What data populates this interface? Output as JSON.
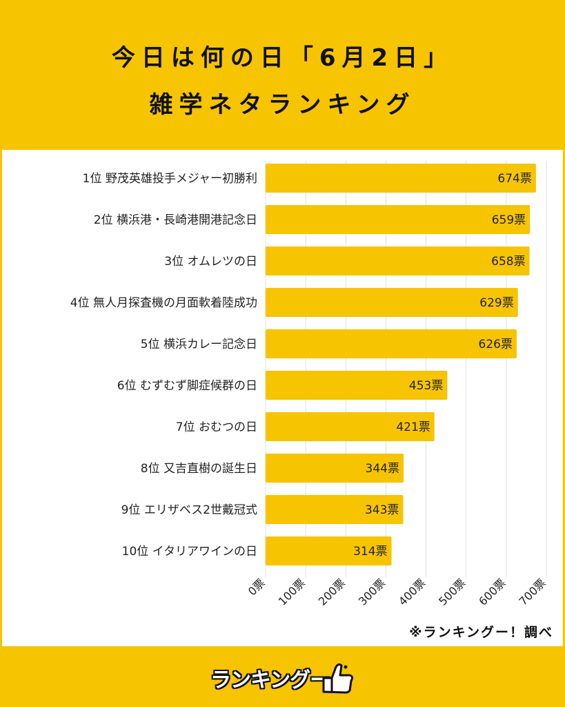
{
  "title_line1": "今日は何の日「6月2日」",
  "title_line2": "雑学ネタランキング",
  "credit": "※ランキングー！調べ",
  "logo_text": "ランキングー",
  "chart_data": {
    "type": "bar",
    "orientation": "horizontal",
    "categories": [
      "1位 野茂英雄投手メジャー初勝利",
      "2位 横浜港・長崎港開港記念日",
      "3位 オムレツの日",
      "4位 無人月探査機の月面軟着陸成功",
      "5位 横浜カレー記念日",
      "6位 むずむず脚症候群の日",
      "7位 おむつの日",
      "8位 又吉直樹の誕生日",
      "9位 エリザベス2世戴冠式",
      "10位 イタリアワインの日"
    ],
    "values": [
      674,
      659,
      658,
      629,
      626,
      453,
      421,
      344,
      343,
      314
    ],
    "value_suffix": "票",
    "xlim": [
      0,
      700
    ],
    "xticks": [
      0,
      100,
      200,
      300,
      400,
      500,
      600,
      700
    ],
    "tick_labels": [
      "0票",
      "100票",
      "200票",
      "300票",
      "400票",
      "500票",
      "600票",
      "700票"
    ],
    "grid": true,
    "bar_color": "#F6C400"
  }
}
